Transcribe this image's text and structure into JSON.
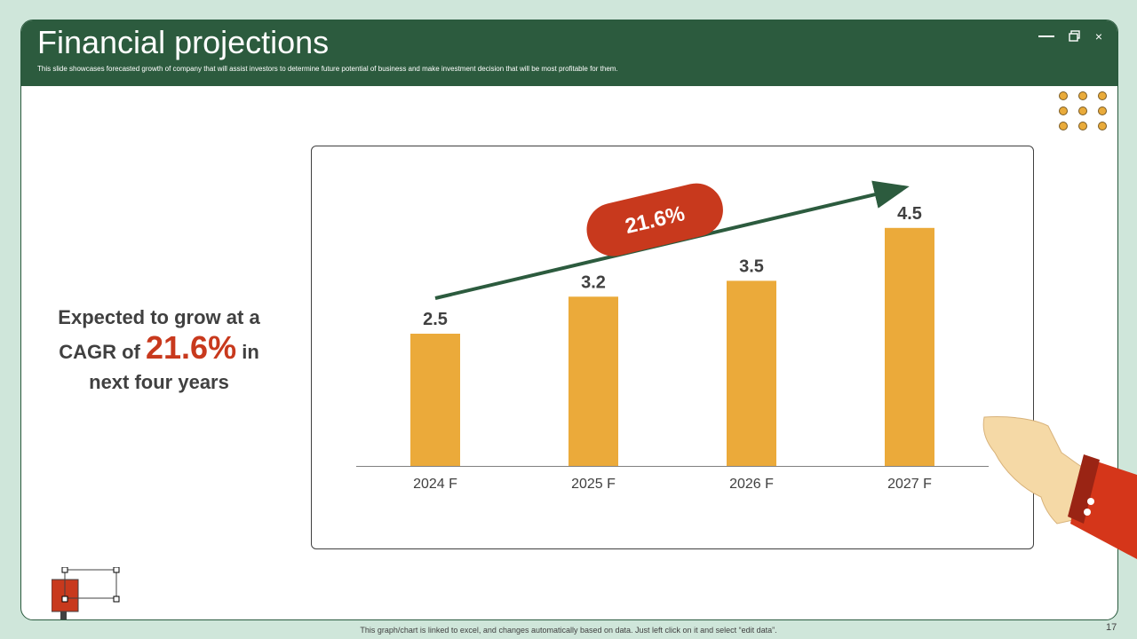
{
  "slide": {
    "title": "Financial projections",
    "subtitle": "This slide showcases forecasted growth of company that will assist investors to determine future potential of business and make investment decision that will be most profitable for them.",
    "controls": {
      "minimize": "minimize",
      "maximize": "maximize",
      "close": "×"
    },
    "cagr": {
      "line1": "Expected to grow at a",
      "prefix": "CAGR of",
      "value": "21.6%",
      "suffix": "in",
      "line3": "next four years"
    },
    "footer_note": "This graph/chart is linked to excel, and changes automatically based on data. Just left click on it and select “edit data”.",
    "page_number": "17"
  },
  "chart_data": {
    "type": "bar",
    "title": "",
    "xlabel": "",
    "ylabel": "",
    "categories": [
      "2024 F",
      "2025 F",
      "2026 F",
      "2027 F"
    ],
    "values": [
      2.5,
      3.2,
      3.5,
      4.5
    ],
    "value_labels": [
      "2.5",
      "3.2",
      "3.5",
      "4.5"
    ],
    "ylim": [
      0,
      5
    ],
    "grid": false,
    "legend": "none",
    "annotation": {
      "text": "21.6%",
      "kind": "growth-arrow"
    },
    "colors": {
      "bar": "#ebaa3a",
      "arrow": "#2c5b3e",
      "badge": "#c8391d",
      "axis": "#808080",
      "text": "#404040"
    }
  }
}
